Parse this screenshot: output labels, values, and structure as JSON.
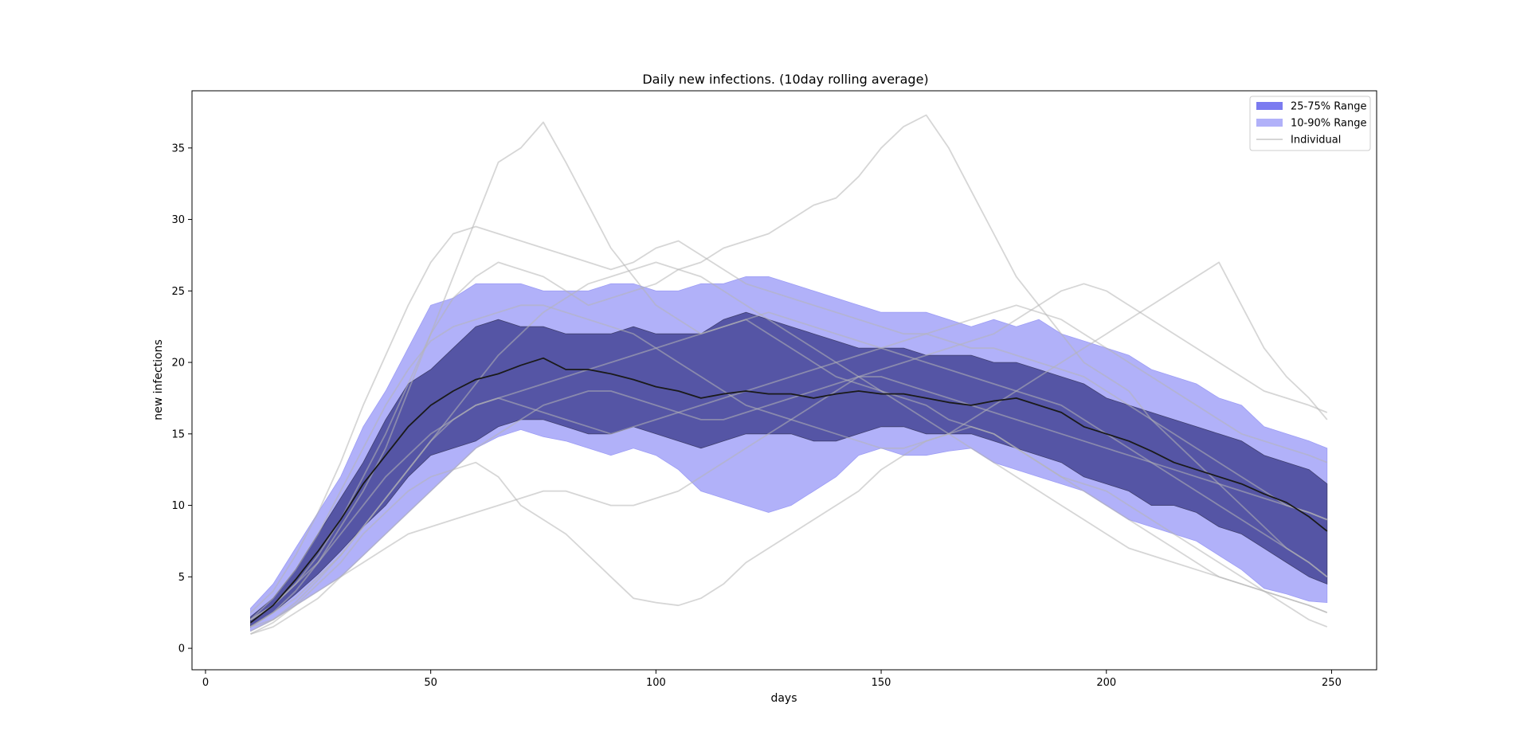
{
  "chart_data": {
    "type": "area",
    "title": "Daily new infections. (10day rolling average)",
    "xlabel": "days",
    "ylabel": "new infections",
    "xlim": [
      -3,
      260
    ],
    "ylim": [
      -1.5,
      39
    ],
    "xticks": [
      0,
      50,
      100,
      150,
      200,
      250
    ],
    "yticks": [
      0,
      5,
      10,
      15,
      20,
      25,
      30,
      35
    ],
    "grid": false,
    "legend_position": "top-right",
    "colors": {
      "range_25_75": "#7b7bf0",
      "range_10_90": "#b1b1f9",
      "individual": "#d6d6d6",
      "median": "#1a1a1a"
    },
    "legend": [
      {
        "label": "25-75% Range",
        "kind": "band",
        "color": "#7b7bf0"
      },
      {
        "label": "10-90% Range",
        "kind": "band",
        "color": "#b1b1f9"
      },
      {
        "label": "Individual",
        "kind": "line",
        "color": "#d6d6d6"
      }
    ],
    "x": [
      10,
      15,
      20,
      25,
      30,
      35,
      40,
      45,
      50,
      55,
      60,
      65,
      70,
      75,
      80,
      85,
      90,
      95,
      100,
      105,
      110,
      115,
      120,
      125,
      130,
      135,
      140,
      145,
      150,
      155,
      160,
      165,
      170,
      175,
      180,
      185,
      190,
      195,
      200,
      205,
      210,
      215,
      220,
      225,
      230,
      235,
      240,
      245,
      249
    ],
    "series": [
      {
        "name": "10-90% Range",
        "band": "lower",
        "values": [
          1.2,
          2.0,
          3.0,
          4.0,
          5.0,
          6.5,
          8.0,
          9.5,
          11.0,
          12.5,
          14.0,
          14.8,
          15.3,
          14.8,
          14.5,
          14.0,
          13.5,
          14.0,
          13.5,
          12.5,
          11.0,
          10.5,
          10.0,
          9.5,
          10.0,
          11.0,
          12.0,
          13.5,
          14.0,
          13.5,
          13.5,
          13.8,
          14.0,
          13.0,
          12.5,
          12.0,
          11.5,
          11.0,
          10.0,
          9.0,
          8.5,
          8.0,
          7.5,
          6.5,
          5.5,
          4.2,
          3.8,
          3.3,
          3.2
        ]
      },
      {
        "name": "25-75% Range",
        "band": "lower",
        "values": [
          1.5,
          2.5,
          3.8,
          5.2,
          6.8,
          8.5,
          10.0,
          12.0,
          13.5,
          14.0,
          14.5,
          15.5,
          16.0,
          16.0,
          15.5,
          15.0,
          15.0,
          15.5,
          15.0,
          14.5,
          14.0,
          14.5,
          15.0,
          15.0,
          15.0,
          14.5,
          14.5,
          15.0,
          15.5,
          15.5,
          15.0,
          15.0,
          15.0,
          14.5,
          14.0,
          13.5,
          13.0,
          12.0,
          11.5,
          11.0,
          10.0,
          10.0,
          9.5,
          8.5,
          8.0,
          7.0,
          6.0,
          5.0,
          4.5
        ]
      },
      {
        "name": "Median",
        "band": "median",
        "values": [
          1.8,
          3.0,
          4.8,
          6.8,
          9.0,
          11.5,
          13.5,
          15.5,
          17.0,
          18.0,
          18.8,
          19.2,
          19.8,
          20.3,
          19.5,
          19.5,
          19.2,
          18.8,
          18.3,
          18.0,
          17.5,
          17.8,
          18.0,
          17.8,
          17.8,
          17.5,
          17.8,
          18.0,
          17.8,
          17.8,
          17.5,
          17.2,
          17.0,
          17.3,
          17.5,
          17.0,
          16.5,
          15.5,
          15.0,
          14.5,
          13.8,
          13.0,
          12.5,
          12.0,
          11.5,
          10.8,
          10.2,
          9.2,
          8.2
        ]
      },
      {
        "name": "25-75% Range",
        "band": "upper",
        "values": [
          2.2,
          3.5,
          5.5,
          8.0,
          10.5,
          13.0,
          16.0,
          18.5,
          19.5,
          21.0,
          22.5,
          23.0,
          22.5,
          22.5,
          22.0,
          22.0,
          22.0,
          22.5,
          22.0,
          22.0,
          22.0,
          23.0,
          23.5,
          23.0,
          22.5,
          22.0,
          21.5,
          21.0,
          21.0,
          21.0,
          20.5,
          20.5,
          20.5,
          20.0,
          20.0,
          19.5,
          19.0,
          18.5,
          17.5,
          17.0,
          16.5,
          16.0,
          15.5,
          15.0,
          14.5,
          13.5,
          13.0,
          12.5,
          11.5
        ]
      },
      {
        "name": "10-90% Range",
        "band": "upper",
        "values": [
          2.8,
          4.5,
          7.0,
          9.5,
          12.0,
          15.5,
          18.0,
          21.0,
          24.0,
          24.5,
          25.5,
          25.5,
          25.5,
          25.0,
          25.0,
          25.0,
          25.5,
          25.5,
          25.0,
          25.0,
          25.5,
          25.5,
          26.0,
          26.0,
          25.5,
          25.0,
          24.5,
          24.0,
          23.5,
          23.5,
          23.5,
          23.0,
          22.5,
          23.0,
          22.5,
          23.0,
          22.0,
          21.5,
          21.0,
          20.5,
          19.5,
          19.0,
          18.5,
          17.5,
          17.0,
          15.5,
          15.0,
          14.5,
          14.0
        ]
      },
      {
        "name": "Individual",
        "values": [
          1.5,
          2.5,
          4.0,
          6.0,
          8.5,
          11.0,
          14.0,
          18.0,
          22.0,
          26.0,
          30.0,
          34.0,
          35.0,
          36.8,
          34.0,
          31.0,
          28.0,
          26.0,
          24.0,
          23.0,
          22.0,
          22.5,
          23.0,
          22.0,
          21.0,
          20.0,
          19.0,
          18.5,
          18.0,
          17.5,
          17.0,
          16.0,
          15.5,
          15.0,
          14.0,
          13.0,
          12.0,
          11.0,
          10.0,
          9.0,
          8.0,
          7.0,
          6.0,
          5.0,
          4.5,
          4.0,
          3.5,
          3.0,
          2.5
        ]
      },
      {
        "name": "Individual",
        "values": [
          2.0,
          3.0,
          4.5,
          6.5,
          9.0,
          12.0,
          15.0,
          18.5,
          22.0,
          24.5,
          26.0,
          27.0,
          26.5,
          26.0,
          25.0,
          24.0,
          24.5,
          25.0,
          25.5,
          26.5,
          27.0,
          28.0,
          28.5,
          29.0,
          30.0,
          31.0,
          31.5,
          33.0,
          35.0,
          36.5,
          37.3,
          35.0,
          32.0,
          29.0,
          26.0,
          24.0,
          22.0,
          20.0,
          19.0,
          18.0,
          16.0,
          14.5,
          13.0,
          11.5,
          10.0,
          8.5,
          7.0,
          6.0,
          5.0
        ]
      },
      {
        "name": "Individual",
        "values": [
          1.0,
          1.8,
          3.0,
          4.5,
          6.0,
          8.0,
          9.5,
          11.0,
          12.0,
          12.5,
          13.0,
          12.0,
          10.0,
          9.0,
          8.0,
          6.5,
          5.0,
          3.5,
          3.2,
          3.0,
          3.5,
          4.5,
          6.0,
          7.0,
          8.0,
          9.0,
          10.0,
          11.0,
          12.5,
          13.5,
          14.5,
          15.0,
          15.5,
          15.0,
          14.0,
          13.0,
          12.0,
          11.5,
          11.0,
          10.0,
          9.0,
          8.0,
          7.0,
          6.0,
          5.0,
          4.0,
          3.0,
          2.0,
          1.5
        ]
      },
      {
        "name": "Individual",
        "values": [
          1.5,
          2.0,
          3.0,
          4.0,
          5.0,
          6.0,
          7.0,
          8.0,
          8.5,
          9.0,
          9.5,
          10.0,
          10.5,
          11.0,
          11.0,
          10.5,
          10.0,
          10.0,
          10.5,
          11.0,
          12.0,
          13.0,
          14.0,
          15.0,
          16.0,
          17.0,
          18.0,
          19.0,
          19.5,
          20.0,
          20.5,
          21.0,
          21.5,
          22.0,
          23.0,
          24.0,
          25.0,
          25.5,
          25.0,
          24.0,
          23.0,
          22.0,
          21.0,
          20.0,
          19.0,
          18.0,
          17.5,
          17.0,
          16.5
        ]
      },
      {
        "name": "Individual",
        "values": [
          2.5,
          4.0,
          6.5,
          9.5,
          13.0,
          17.0,
          20.5,
          24.0,
          27.0,
          29.0,
          29.5,
          29.0,
          28.5,
          28.0,
          27.5,
          27.0,
          26.5,
          27.0,
          28.0,
          28.5,
          27.5,
          26.5,
          25.5,
          25.0,
          24.5,
          24.0,
          23.5,
          23.0,
          22.5,
          22.0,
          22.0,
          21.5,
          21.0,
          21.0,
          20.5,
          20.0,
          19.5,
          19.0,
          18.0,
          17.0,
          16.0,
          15.0,
          14.0,
          13.0,
          12.0,
          11.0,
          10.0,
          9.5,
          9.0
        ]
      },
      {
        "name": "Individual",
        "values": [
          1.0,
          1.5,
          2.5,
          3.5,
          5.0,
          6.5,
          8.0,
          9.5,
          11.0,
          12.5,
          14.0,
          15.0,
          16.0,
          17.0,
          17.5,
          18.0,
          18.0,
          17.5,
          17.0,
          16.5,
          16.0,
          16.0,
          16.5,
          17.0,
          17.5,
          18.0,
          18.5,
          19.0,
          19.0,
          18.5,
          18.0,
          17.5,
          17.0,
          16.5,
          16.0,
          15.5,
          15.0,
          14.5,
          14.0,
          13.5,
          13.0,
          12.5,
          12.0,
          11.5,
          11.0,
          10.5,
          10.0,
          9.5,
          9.0
        ]
      },
      {
        "name": "Individual",
        "values": [
          2.0,
          3.5,
          5.5,
          8.0,
          11.0,
          14.0,
          17.0,
          19.5,
          21.5,
          22.5,
          23.0,
          23.5,
          24.0,
          24.0,
          23.5,
          23.0,
          22.5,
          22.0,
          21.0,
          20.0,
          19.0,
          18.0,
          17.0,
          16.5,
          16.0,
          15.5,
          15.0,
          14.5,
          14.0,
          14.0,
          14.5,
          15.0,
          16.0,
          17.0,
          18.0,
          19.0,
          20.0,
          21.0,
          22.0,
          23.0,
          24.0,
          25.0,
          26.0,
          27.0,
          24.0,
          21.0,
          19.0,
          17.5,
          16.0
        ]
      },
      {
        "name": "Individual",
        "values": [
          1.5,
          2.5,
          3.5,
          5.0,
          6.5,
          8.5,
          10.5,
          12.5,
          14.5,
          16.5,
          18.5,
          20.5,
          22.0,
          23.5,
          24.5,
          25.5,
          26.0,
          26.5,
          27.0,
          26.5,
          26.0,
          25.0,
          24.0,
          23.0,
          22.0,
          21.0,
          20.0,
          19.0,
          18.0,
          17.0,
          16.0,
          15.0,
          14.0,
          13.0,
          12.0,
          11.0,
          10.0,
          9.0,
          8.0,
          7.0,
          6.5,
          6.0,
          5.5,
          5.0,
          4.5,
          4.0,
          3.5,
          3.0,
          2.5
        ]
      },
      {
        "name": "Individual",
        "values": [
          2.0,
          3.0,
          4.5,
          6.0,
          8.0,
          10.0,
          12.0,
          13.5,
          15.0,
          16.0,
          17.0,
          17.5,
          18.0,
          18.5,
          19.0,
          19.5,
          20.0,
          20.5,
          21.0,
          21.5,
          22.0,
          22.5,
          23.0,
          23.5,
          23.0,
          22.5,
          22.0,
          21.5,
          21.0,
          20.5,
          20.0,
          19.5,
          19.0,
          18.5,
          18.0,
          17.5,
          17.0,
          16.0,
          15.0,
          14.0,
          13.0,
          12.0,
          11.0,
          10.0,
          9.0,
          8.0,
          7.0,
          6.0,
          5.0
        ]
      },
      {
        "name": "Individual",
        "values": [
          1.2,
          2.0,
          3.2,
          4.8,
          6.5,
          8.5,
          10.5,
          12.5,
          14.5,
          16.0,
          17.0,
          17.5,
          17.0,
          16.5,
          16.0,
          15.5,
          15.0,
          15.5,
          16.0,
          16.5,
          17.0,
          17.5,
          18.0,
          18.5,
          19.0,
          19.5,
          20.0,
          20.5,
          21.0,
          21.5,
          22.0,
          22.5,
          23.0,
          23.5,
          24.0,
          23.5,
          23.0,
          22.0,
          21.0,
          20.0,
          19.0,
          18.0,
          17.0,
          16.0,
          15.0,
          14.5,
          14.0,
          13.5,
          13.0
        ]
      }
    ]
  }
}
